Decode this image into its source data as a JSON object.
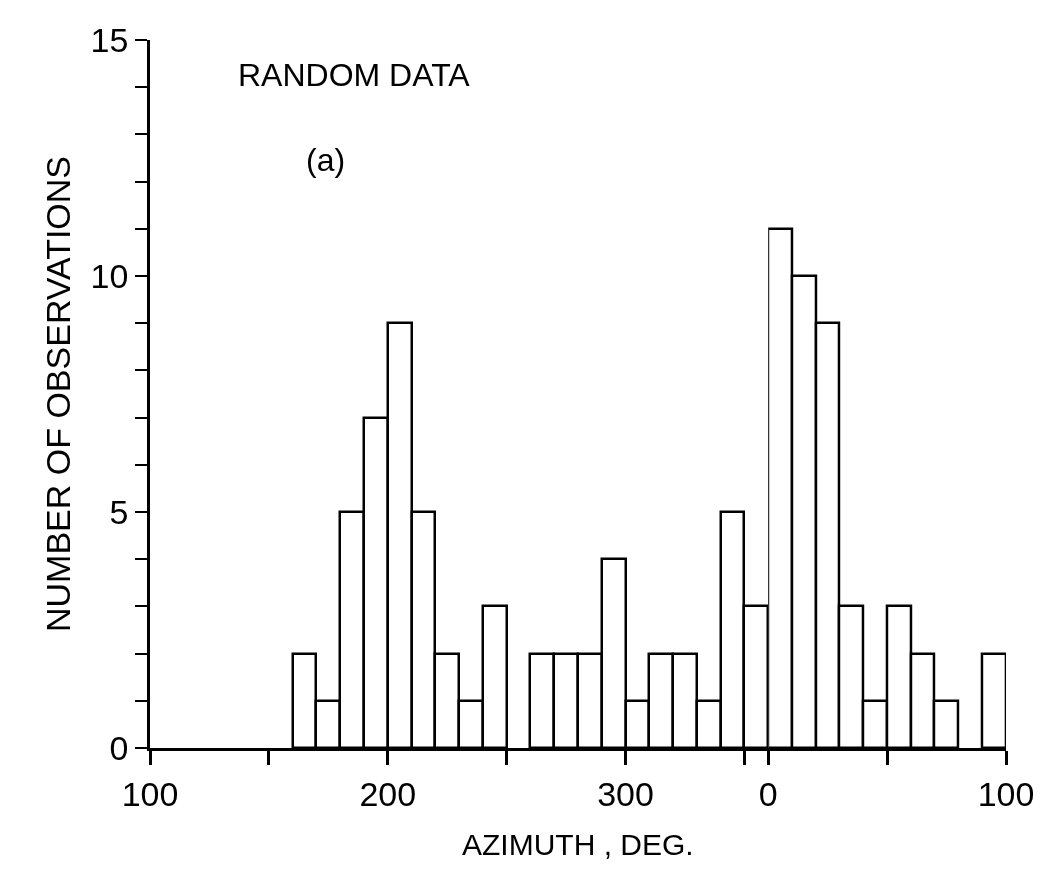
{
  "chart_data": [
    {
      "type": "histogram",
      "xlabel": "AZIMUTH , DEG.",
      "ylabel": "NUMBER OF OBSERVATIONS",
      "annotations": [
        "RANDOM DATA",
        "(a)"
      ],
      "bins": [
        160,
        170,
        180,
        190,
        200,
        210,
        220,
        230,
        240,
        250,
        260,
        270,
        280,
        290,
        300,
        310,
        320,
        330,
        340,
        350,
        360
      ],
      "values": [
        2,
        1,
        5,
        7,
        9,
        5,
        2,
        1,
        3,
        0,
        2,
        2,
        2,
        4,
        1,
        2,
        2,
        1,
        5,
        3
      ],
      "color": "#ffffff",
      "xlim": [
        100,
        360
      ],
      "xticks": [
        100,
        {
          "value": 150,
          "label": null
        },
        200,
        {
          "value": 250,
          "label": null
        },
        300,
        {
          "value": 350,
          "label": null
        }
      ],
      "ylim": [
        0,
        15
      ],
      "yticks": [
        0,
        {
          "value": 1,
          "label": null
        },
        {
          "value": 2,
          "label": null
        },
        {
          "value": 3,
          "label": null
        },
        {
          "value": 4,
          "label": null
        },
        5,
        {
          "value": 6,
          "label": null
        },
        {
          "value": 7,
          "label": null
        },
        {
          "value": 8,
          "label": null
        },
        {
          "value": 9,
          "label": null
        },
        10,
        {
          "value": 11,
          "label": null
        },
        {
          "value": 12,
          "label": null
        },
        {
          "value": 13,
          "label": null
        },
        {
          "value": 14,
          "label": null
        },
        15
      ]
    },
    {
      "type": "histogram",
      "bins": [
        0,
        10,
        20,
        30,
        40,
        50,
        60,
        70,
        80,
        90,
        100
      ],
      "values": [
        11,
        10,
        9,
        3,
        1,
        3,
        2,
        1,
        0,
        2
      ],
      "color": "#ffffff",
      "xlim": [
        0,
        100
      ],
      "xticks": [
        0,
        {
          "value": 50,
          "label": null
        },
        100
      ],
      "ylim": [
        0,
        15
      ],
      "tick_labels": "x"
    }
  ]
}
